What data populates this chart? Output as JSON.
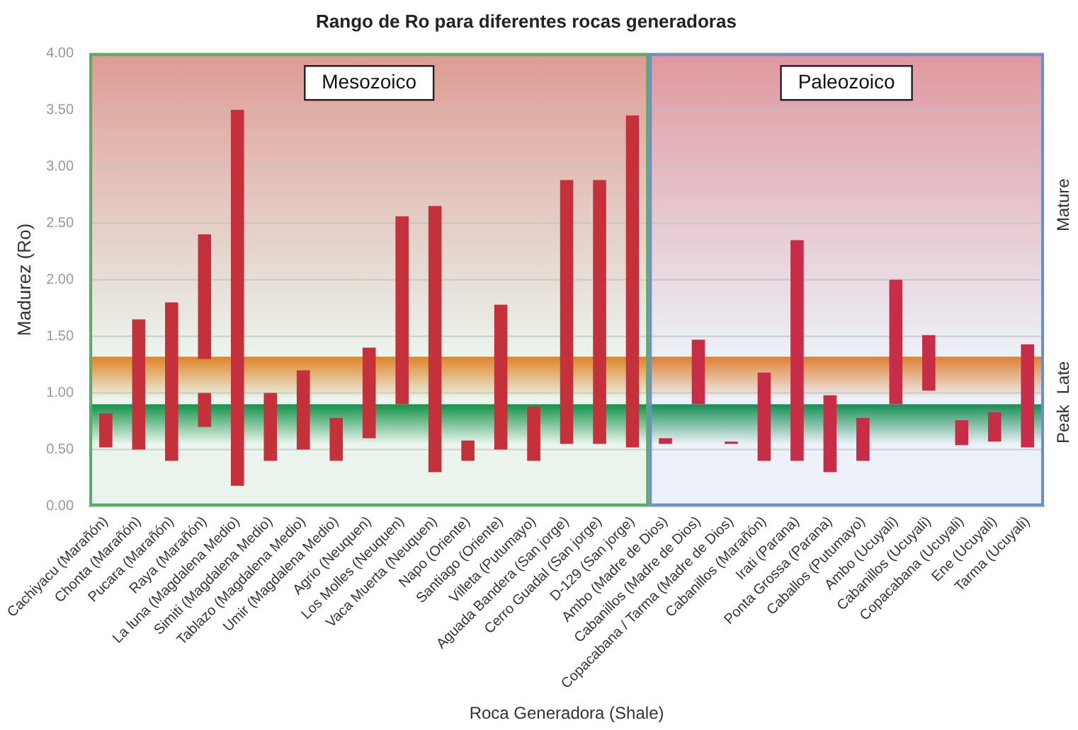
{
  "chart_data": {
    "type": "bar",
    "title": "Rango de Ro para diferentes rocas generadoras",
    "xlabel": "Roca Generadora (Shale)",
    "ylabel": "Madurez (Ro)",
    "categories": [
      "Cachiyacu (Marañón)",
      "Chonta (Marañón)",
      "Pucara (Marañón)",
      "Raya (Marañón)",
      "La luna (Magdalena Medio)",
      "Simiti (Magdalena Medio)",
      "Tablazo (Magdalena Medio)",
      "Umir (Magdalena Medio)",
      "Agrio (Neuquen)",
      "Los Molles (Neuquen)",
      "Vaca Muerta (Neuquen)",
      "Napo (Oriente)",
      "Santiago (Oriente)",
      "Villeta (Putumayo)",
      "Aguada Bandera (San jorge)",
      "Cerro Guadal (San jorge)",
      "D-129 (San jorge)",
      "Ambo (Madre de Dios)",
      "Cabanillos (Madre de Dios)",
      "Copacabana / Tarma (Madre de Dios)",
      "Cabanillos (Marañón)",
      "Irati (Parana)",
      "Ponta Grossa (Parana)",
      "Caballos (Putumayo)",
      "Ambo (Ucuyali)",
      "Cabanillos (Ucuyali)",
      "Copacabana (Ucuyali)",
      "Ene (Ucuyali)",
      "Tarma (Ucuyali)"
    ],
    "series": [
      {
        "color": "#d42035",
        "base": [
          0.52,
          0.5,
          0.4,
          0.7,
          0.18,
          0.4,
          0.5,
          0.4,
          0.6,
          0.9,
          0.3,
          0.4,
          0.5,
          0.4,
          0.55,
          0.55,
          0.52,
          0.55,
          0.9,
          0.55,
          0.4,
          0.4,
          0.3,
          0.4,
          0.9,
          1.02,
          0.54,
          0.57,
          0.52
        ],
        "values": [
          0.3,
          1.15,
          1.4,
          0.3,
          3.32,
          0.6,
          0.7,
          0.38,
          0.8,
          1.66,
          2.35,
          0.18,
          1.28,
          0.48,
          2.33,
          2.33,
          2.93,
          0.05,
          0.57,
          0.02,
          0.78,
          1.95,
          0.68,
          0.38,
          1.1,
          0.49,
          0.22,
          0.26,
          0.91
        ]
      },
      {
        "color": "#d42035",
        "base": [
          null,
          null,
          null,
          1.3,
          null,
          null,
          null,
          null,
          null,
          null,
          null,
          null,
          null,
          null,
          null,
          null,
          null,
          null,
          null,
          null,
          null,
          null,
          null,
          null,
          null,
          null,
          null,
          null,
          null
        ],
        "values": [
          null,
          null,
          null,
          1.1,
          null,
          null,
          null,
          null,
          null,
          null,
          null,
          null,
          null,
          null,
          null,
          null,
          null,
          null,
          null,
          null,
          null,
          null,
          null,
          null,
          null,
          null,
          null,
          null,
          null
        ]
      }
    ],
    "ylim": [
      0,
      4
    ],
    "yticks": [
      {
        "value": 0,
        "label": "0.00"
      },
      {
        "value": 0.5,
        "label": "0.50"
      },
      {
        "value": 1,
        "label": "1.00"
      },
      {
        "value": 1.5,
        "label": "1.50"
      },
      {
        "value": 2,
        "label": "2.00"
      },
      {
        "value": 2.5,
        "label": "2.50"
      },
      {
        "value": 3,
        "label": "3.00"
      },
      {
        "value": 3.5,
        "label": "3.50"
      },
      {
        "value": 4,
        "label": "4.00"
      }
    ],
    "bands": [
      {
        "axis": "y",
        "from": 1.32,
        "to": 4,
        "label": "Mature",
        "color": "#f09a9a"
      },
      {
        "axis": "y",
        "from": 0.95,
        "to": 1.32,
        "label": "Late",
        "color": "#f07f1e"
      },
      {
        "axis": "y",
        "from": 0.55,
        "to": 0.9,
        "label": "Peak",
        "color": "#0a8f45"
      },
      {
        "axis": "x",
        "from": "Cachiyacu (Marañón)",
        "to": "D-129 (San jorge)",
        "label": "Mesozoico",
        "color": "#5aaa68"
      },
      {
        "axis": "x",
        "from": "Ambo (Madre de Dios)",
        "to": "Tarma (Ucuyali)",
        "label": "Paleozoico",
        "color": "#6b8fc6"
      }
    ],
    "grid": "y",
    "legend": false
  }
}
